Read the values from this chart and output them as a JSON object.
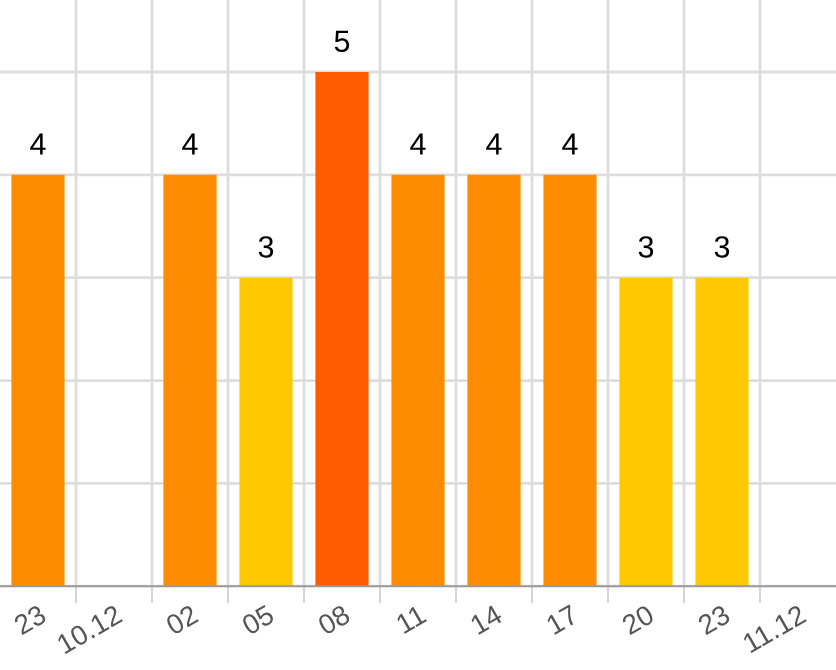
{
  "chart_data": {
    "type": "bar",
    "categories": [
      "23",
      "10.12",
      "02",
      "05",
      "08",
      "11",
      "14",
      "17",
      "20",
      "23",
      "11.12"
    ],
    "values": [
      4,
      null,
      4,
      3,
      5,
      4,
      4,
      4,
      3,
      3,
      null
    ],
    "colors": [
      "#ff8c00",
      "#ffffff",
      "#ff8c00",
      "#ffc800",
      "#ff5a00",
      "#ff8c00",
      "#ff8c00",
      "#ff8c00",
      "#ffc800",
      "#ffc800",
      "#ffffff"
    ],
    "data_labels": true,
    "ylim": [
      0,
      5.7
    ],
    "yticks": [
      {
        "value": 0,
        "label": null
      },
      {
        "value": 1,
        "label": null
      },
      {
        "value": 2,
        "label": null
      },
      {
        "value": 3,
        "label": null
      },
      {
        "value": 4,
        "label": null
      },
      {
        "value": 5,
        "label": null
      }
    ],
    "tick_labels": "x",
    "grid": true
  }
}
